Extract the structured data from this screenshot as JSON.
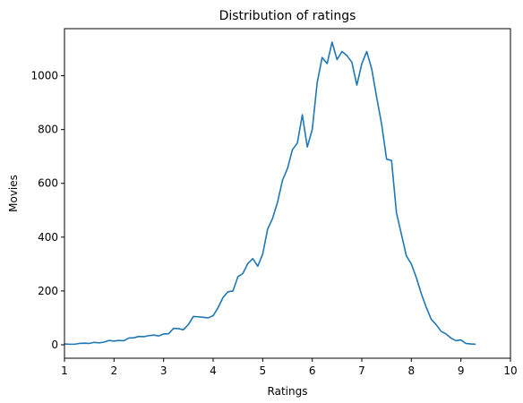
{
  "chart_data": {
    "type": "line",
    "title": "Distribution of ratings",
    "xlabel": "Ratings",
    "ylabel": "Movies",
    "xlim": [
      1,
      10
    ],
    "ylim": [
      -50,
      1175
    ],
    "xticks": [
      1,
      2,
      3,
      4,
      5,
      6,
      7,
      8,
      9,
      10
    ],
    "yticks": [
      0,
      200,
      400,
      600,
      800,
      1000
    ],
    "grid": false,
    "line_color": "#1f77b4",
    "series": [
      {
        "x": [
          1.0,
          1.1,
          1.2,
          1.3,
          1.4,
          1.5,
          1.6,
          1.7,
          1.8,
          1.9,
          2.0,
          2.1,
          2.2,
          2.3,
          2.4,
          2.5,
          2.6,
          2.7,
          2.8,
          2.9,
          3.0,
          3.1,
          3.2,
          3.3,
          3.4,
          3.5,
          3.6,
          3.7,
          3.8,
          3.9,
          4.0,
          4.1,
          4.2,
          4.3,
          4.4,
          4.5,
          4.6,
          4.7,
          4.8,
          4.9,
          5.0,
          5.1,
          5.2,
          5.3,
          5.4,
          5.5,
          5.6,
          5.7,
          5.8,
          5.9,
          6.0,
          6.1,
          6.2,
          6.3,
          6.4,
          6.5,
          6.6,
          6.7,
          6.8,
          6.9,
          7.0,
          7.1,
          7.2,
          7.3,
          7.4,
          7.5,
          7.6,
          7.7,
          7.8,
          7.9,
          8.0,
          8.1,
          8.2,
          8.3,
          8.4,
          8.5,
          8.6,
          8.7,
          8.8,
          8.9,
          9.0,
          9.1,
          9.2,
          9.3
        ],
        "values": [
          3,
          2,
          2,
          5,
          6,
          5,
          9,
          7,
          10,
          16,
          14,
          16,
          15,
          25,
          26,
          31,
          30,
          34,
          36,
          33,
          40,
          41,
          61,
          60,
          56,
          75,
          105,
          104,
          102,
          100,
          108,
          138,
          176,
          197,
          200,
          253,
          265,
          302,
          320,
          292,
          337,
          430,
          470,
          530,
          612,
          655,
          725,
          750,
          855,
          735,
          800,
          975,
          1068,
          1045,
          1125,
          1060,
          1090,
          1075,
          1050,
          965,
          1045,
          1090,
          1025,
          920,
          820,
          690,
          685,
          490,
          410,
          330,
          300,
          250,
          190,
          140,
          95,
          75,
          50,
          40,
          25,
          15,
          18,
          5,
          3,
          2
        ]
      }
    ]
  }
}
